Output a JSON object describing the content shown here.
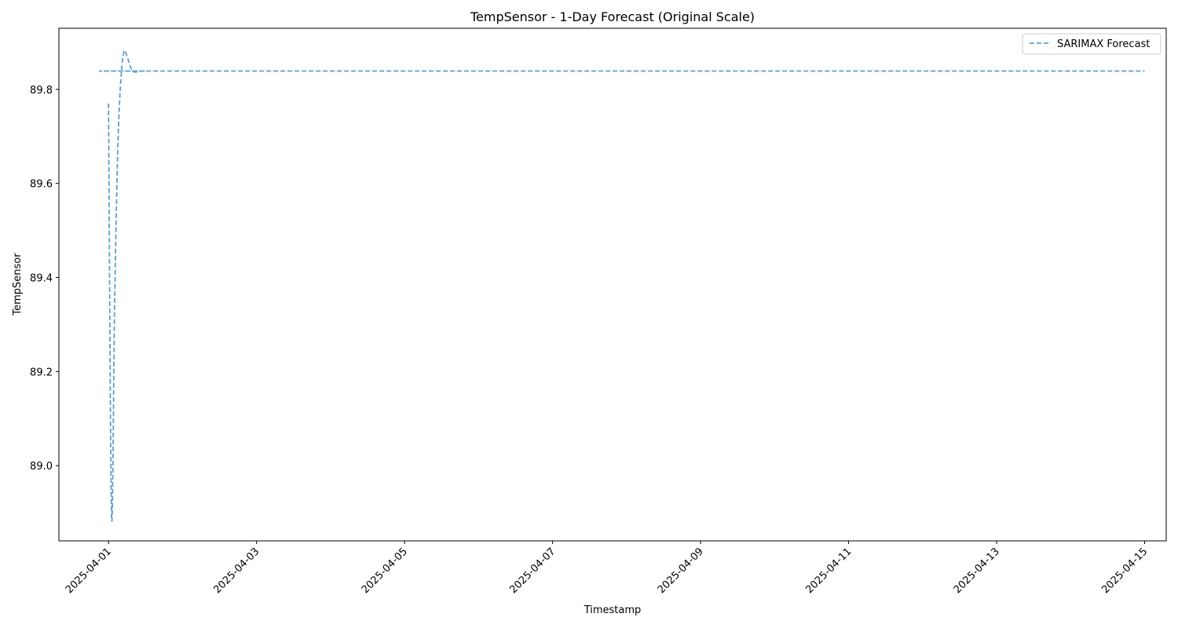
{
  "chart_data": {
    "type": "line",
    "title": "TempSensor - 1-Day Forecast (Original Scale)",
    "xlabel": "Timestamp",
    "ylabel": "TempSensor",
    "x_type": "datetime",
    "xlim": [
      "2025-03-31T07:55",
      "2025-04-15T07:00"
    ],
    "ylim": [
      88.84,
      89.93
    ],
    "grid": false,
    "legend_position": "top-right",
    "x_ticks": [
      "2025-04-01",
      "2025-04-03",
      "2025-04-05",
      "2025-04-07",
      "2025-04-09",
      "2025-04-11",
      "2025-04-13",
      "2025-04-15"
    ],
    "y_ticks": [
      "89.0",
      "89.2",
      "89.4",
      "89.6",
      "89.8"
    ],
    "series": [
      {
        "name": "SARIMAX Forecast",
        "color": "#5a9fcf",
        "line_style": "dashed",
        "points": [
          {
            "x": "2025-04-01T00:00",
            "y": 89.77
          },
          {
            "x": "2025-04-01T01:00",
            "y": 88.89
          },
          {
            "x": "2025-04-01T02:00",
            "y": 89.35
          },
          {
            "x": "2025-04-01T03:00",
            "y": 89.67
          },
          {
            "x": "2025-04-01T04:00",
            "y": 89.82
          },
          {
            "x": "2025-04-01T05:00",
            "y": 89.88
          },
          {
            "x": "2025-04-01T06:00",
            "y": 89.87
          },
          {
            "x": "2025-04-01T07:00",
            "y": 89.85
          },
          {
            "x": "2025-04-01T08:00",
            "y": 89.838
          },
          {
            "x": "2025-04-01T09:00",
            "y": 89.837
          },
          {
            "x": "2025-04-01T10:00",
            "y": 89.838
          },
          {
            "x": "2025-04-01T12:00",
            "y": 89.839
          },
          {
            "x": "2025-04-02T00:00",
            "y": 89.839
          },
          {
            "x": "2025-04-15T00:00",
            "y": 89.839
          }
        ]
      }
    ]
  }
}
